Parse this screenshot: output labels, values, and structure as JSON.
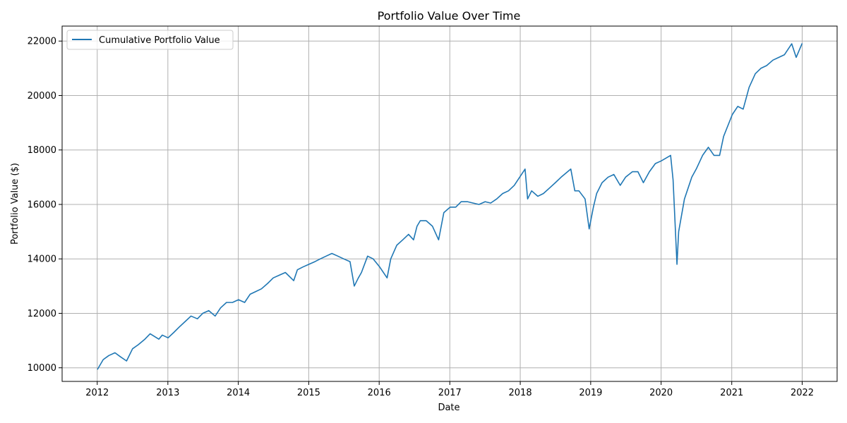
{
  "chart_data": {
    "type": "line",
    "title": "Portfolio Value Over Time",
    "xlabel": "Date",
    "ylabel": "Portfolio Value ($)",
    "xlim": [
      "2011-07-03",
      "2022-07-01"
    ],
    "ylim": [
      9500,
      22550
    ],
    "x_ticks": [
      "2012",
      "2013",
      "2014",
      "2015",
      "2016",
      "2017",
      "2018",
      "2019",
      "2020",
      "2021",
      "2022"
    ],
    "y_ticks": [
      10000,
      12000,
      14000,
      16000,
      18000,
      20000,
      22000
    ],
    "grid": true,
    "legend_position": "top-left",
    "series": [
      {
        "name": "Cumulative Portfolio Value",
        "color": "#1f77b4",
        "x": [
          "2012-01-03",
          "2012-02-01",
          "2012-03-01",
          "2012-04-02",
          "2012-05-01",
          "2012-06-01",
          "2012-07-02",
          "2012-08-01",
          "2012-09-04",
          "2012-10-01",
          "2012-11-15",
          "2012-12-03",
          "2013-01-02",
          "2013-02-01",
          "2013-03-01",
          "2013-04-01",
          "2013-05-01",
          "2013-06-03",
          "2013-07-01",
          "2013-08-01",
          "2013-09-03",
          "2013-10-01",
          "2013-11-01",
          "2013-12-02",
          "2014-01-02",
          "2014-02-03",
          "2014-03-03",
          "2014-04-01",
          "2014-05-01",
          "2014-06-02",
          "2014-07-01",
          "2014-08-01",
          "2014-09-02",
          "2014-10-15",
          "2014-11-03",
          "2014-12-01",
          "2015-01-02",
          "2015-02-02",
          "2015-03-02",
          "2015-04-01",
          "2015-05-01",
          "2015-06-01",
          "2015-07-01",
          "2015-08-03",
          "2015-08-25",
          "2015-09-15",
          "2015-10-01",
          "2015-11-02",
          "2015-12-01",
          "2016-01-04",
          "2016-02-11",
          "2016-03-01",
          "2016-04-01",
          "2016-05-02",
          "2016-06-01",
          "2016-06-27",
          "2016-07-15",
          "2016-08-01",
          "2016-09-01",
          "2016-10-03",
          "2016-11-04",
          "2016-12-01",
          "2017-01-03",
          "2017-02-01",
          "2017-03-01",
          "2017-04-03",
          "2017-05-01",
          "2017-06-01",
          "2017-07-03",
          "2017-08-01",
          "2017-09-01",
          "2017-10-02",
          "2017-11-01",
          "2017-12-01",
          "2018-01-26",
          "2018-02-08",
          "2018-03-01",
          "2018-04-02",
          "2018-05-01",
          "2018-06-01",
          "2018-07-02",
          "2018-08-01",
          "2018-09-20",
          "2018-10-11",
          "2018-11-01",
          "2018-12-03",
          "2018-12-24",
          "2019-01-15",
          "2019-02-01",
          "2019-03-01",
          "2019-04-01",
          "2019-05-01",
          "2019-06-03",
          "2019-07-01",
          "2019-08-05",
          "2019-09-03",
          "2019-10-01",
          "2019-11-01",
          "2019-12-02",
          "2020-01-02",
          "2020-02-19",
          "2020-03-03",
          "2020-03-23",
          "2020-04-01",
          "2020-05-01",
          "2020-06-08",
          "2020-07-01",
          "2020-08-03",
          "2020-09-02",
          "2020-10-01",
          "2020-10-30",
          "2020-11-20",
          "2021-01-04",
          "2021-02-01",
          "2021-03-01",
          "2021-04-01",
          "2021-05-03",
          "2021-06-01",
          "2021-07-01",
          "2021-08-02",
          "2021-09-02",
          "2021-10-01",
          "2021-11-08",
          "2021-12-01",
          "2021-12-31"
        ],
        "y": [
          9950,
          10300,
          10450,
          10550,
          10400,
          10250,
          10700,
          10850,
          11050,
          11250,
          11050,
          11200,
          11100,
          11300,
          11500,
          11700,
          11900,
          11800,
          12000,
          12100,
          11900,
          12200,
          12400,
          12400,
          12500,
          12400,
          12700,
          12800,
          12900,
          13100,
          13300,
          13400,
          13500,
          13200,
          13600,
          13700,
          13800,
          13900,
          14000,
          14100,
          14200,
          14100,
          14000,
          13900,
          13000,
          13300,
          13500,
          14100,
          14000,
          13700,
          13300,
          14000,
          14500,
          14700,
          14900,
          14700,
          15200,
          15400,
          15400,
          15200,
          14700,
          15700,
          15900,
          15900,
          16100,
          16100,
          16050,
          16000,
          16100,
          16050,
          16200,
          16400,
          16500,
          16700,
          17300,
          16200,
          16500,
          16300,
          16400,
          16600,
          16800,
          17000,
          17300,
          16500,
          16500,
          16200,
          15100,
          15900,
          16400,
          16800,
          17000,
          17100,
          16700,
          17000,
          17200,
          17200,
          16800,
          17200,
          17500,
          17600,
          17800,
          16900,
          13800,
          15000,
          16200,
          17000,
          17300,
          17800,
          18100,
          17800,
          17800,
          18500,
          19300,
          19600,
          19500,
          20300,
          20800,
          21000,
          21100,
          21300,
          21400,
          21500,
          21900,
          21400,
          21900
        ]
      }
    ]
  }
}
